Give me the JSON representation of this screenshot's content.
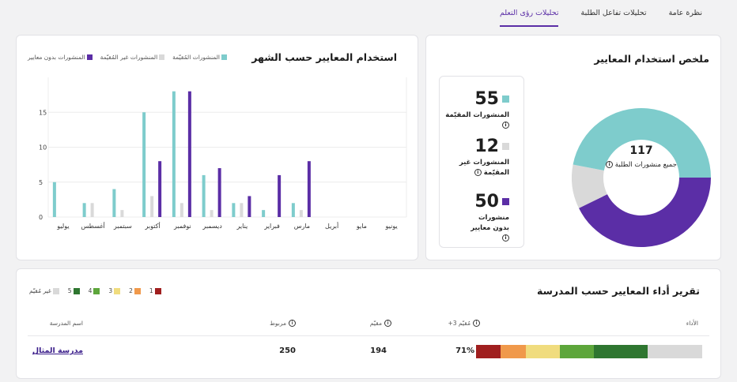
{
  "tabs": [
    {
      "label": "نظرة عامة",
      "active": false
    },
    {
      "label": "تحليلات تفاعل الطلبة",
      "active": false
    },
    {
      "label": "تحليلات رؤى التعلم",
      "active": true
    }
  ],
  "colors": {
    "assessed": "#7ecccc",
    "not_assessed": "#d9d9d9",
    "no_criteria": "#5b2ea6"
  },
  "summary": {
    "title": "ملخص استخدام المعايير",
    "total": "117",
    "total_label": "جميع منشورات الطلبة",
    "stats": [
      {
        "value": "55",
        "label": "المنشورات المقيّمة",
        "color": "#7ecccc"
      },
      {
        "value": "12",
        "label": "المنشورات غير المقيّمة",
        "color": "#d9d9d9"
      },
      {
        "value": "50",
        "label": "منشورات بدون معايير",
        "color": "#5b2ea6"
      }
    ],
    "info_icon": "info-icon"
  },
  "monthly": {
    "title": "استخدام المعايير حسب الشهر",
    "legend": {
      "assessed": "المنشورات المُقيّمة",
      "not_assessed": "المنشورات غير المُقيّمة",
      "no_criteria": "المنشورات بدون معايير"
    }
  },
  "chart_data": {
    "type": "bar",
    "categories": [
      "يوليو",
      "أغسطس",
      "سبتمبر",
      "أكتوبر",
      "نوفمبر",
      "ديسمبر",
      "يناير",
      "فبراير",
      "مارس",
      "أبريل",
      "مايو",
      "يونيو"
    ],
    "series": [
      {
        "name": "المنشورات المُقيّمة",
        "color": "#7ecccc",
        "values": [
          5,
          2,
          4,
          15,
          18,
          6,
          2,
          1,
          2,
          0,
          0,
          0
        ]
      },
      {
        "name": "المنشورات غير المُقيّمة",
        "color": "#d9d9d9",
        "values": [
          0,
          2,
          1,
          3,
          2,
          1,
          2,
          0,
          1,
          0,
          0,
          0
        ]
      },
      {
        "name": "المنشورات بدون معايير",
        "color": "#5b2ea6",
        "values": [
          0,
          0,
          0,
          8,
          18,
          7,
          3,
          6,
          8,
          0,
          0,
          0
        ]
      }
    ],
    "yticks": [
      0,
      5,
      10,
      15
    ],
    "ylim": [
      0,
      20
    ],
    "grid": true,
    "legend_position": "top-left"
  },
  "school_report": {
    "title": "تقرير أداء المعايير حسب المدرسة",
    "scale": [
      {
        "label": "1",
        "color": "#a01f1f"
      },
      {
        "label": "2",
        "color": "#f0994b"
      },
      {
        "label": "3",
        "color": "#f0dc7e"
      },
      {
        "label": "4",
        "color": "#5da63b"
      },
      {
        "label": "5",
        "color": "#2e7630"
      },
      {
        "label": "غير مُقيّم",
        "color": "#d9d9d9"
      }
    ],
    "headers": {
      "performance": "الأداء",
      "assessed_3plus": "مُقيّم 3+",
      "assessed": "مقيّم",
      "linked": "مربوط",
      "school_name": "اسم المدرسة"
    },
    "rows": [
      {
        "school_name": "مدرسة المثال",
        "linked": "250",
        "assessed": "194",
        "assessed_3plus": "71%",
        "distribution": [
          0.11,
          0.11,
          0.15,
          0.15,
          0.24,
          0.24
        ]
      }
    ]
  }
}
